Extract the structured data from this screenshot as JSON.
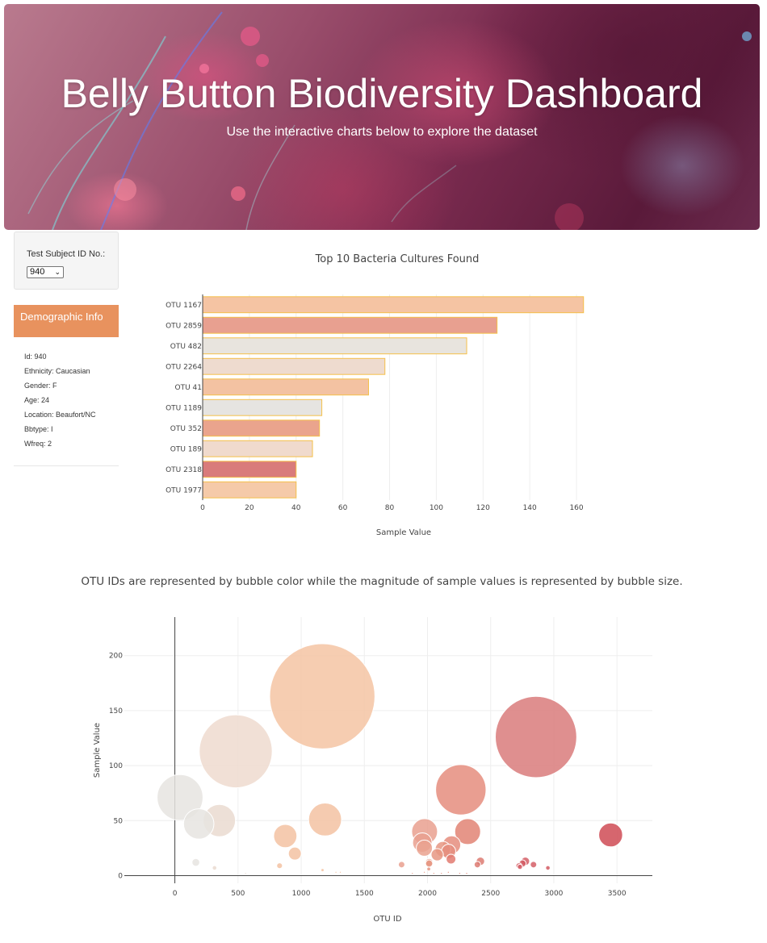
{
  "header": {
    "title": "Belly Button Biodiversity Dashboard",
    "subtitle": "Use the interactive charts below to explore the dataset"
  },
  "selector": {
    "label": "Test Subject ID No.:",
    "selected": "940"
  },
  "demographics": {
    "title": "Demographic Info",
    "rows": [
      "Id: 940",
      "Ethnicity: Caucasian",
      "Gender: F",
      "Age: 24",
      "Location: Beaufort/NC",
      "Bbtype: I",
      "Wfreq: 2"
    ]
  },
  "colors": {
    "accent": "#e8925e",
    "bar_border": "#f5c04a"
  },
  "chart_data": [
    {
      "type": "bar",
      "orientation": "horizontal",
      "title": "Top 10 Bacteria Cultures Found",
      "xlabel": "Sample Value",
      "ylabel": "",
      "xlim": [
        0,
        170
      ],
      "xticks": [
        0,
        20,
        40,
        60,
        80,
        100,
        120,
        140,
        160
      ],
      "categories": [
        "OTU 1167",
        "OTU 2859",
        "OTU 482",
        "OTU 2264",
        "OTU 41",
        "OTU 1189",
        "OTU 352",
        "OTU 189",
        "OTU 2318",
        "OTU 1977"
      ],
      "values": [
        163,
        126,
        113,
        78,
        71,
        51,
        50,
        47,
        40,
        40
      ],
      "colors": [
        "#f5c4a3",
        "#e8a090",
        "#e8e4de",
        "#eedbcf",
        "#f3c2a2",
        "#e6e4e1",
        "#eaa48d",
        "#f0dacd",
        "#d97b7b",
        "#f5caa9"
      ]
    },
    {
      "type": "scatter",
      "title": "OTU IDs are represented by bubble color while the magnitude of sample values is represented by bubble size.",
      "xlabel": "OTU ID",
      "ylabel": "Sample Value",
      "xlim": [
        -400,
        3780
      ],
      "ylim": [
        -7,
        235
      ],
      "xticks": [
        0,
        500,
        1000,
        1500,
        2000,
        2500,
        3000,
        3500
      ],
      "yticks": [
        0,
        50,
        100,
        150,
        200
      ],
      "x": [
        1167,
        2859,
        482,
        2264,
        41,
        1189,
        352,
        189,
        2318,
        1977,
        3450,
        874,
        1959,
        2191,
        2122,
        2167,
        1975,
        2077,
        2186,
        2013,
        2013,
        2419,
        2775,
        2395,
        950,
        2732,
        2839,
        2953,
        1795,
        2752,
        2010,
        1169,
        166,
        314,
        829,
        2723,
        1975,
        1880,
        2050,
        2110,
        2165,
        2255,
        1275,
        1310,
        560,
        2310
      ],
      "y": [
        163,
        126,
        113,
        78,
        71,
        51,
        50,
        47,
        40,
        40,
        37,
        36,
        30,
        28,
        24,
        22,
        25,
        19,
        15,
        12,
        11,
        13,
        13,
        10,
        20,
        8,
        10,
        7,
        10,
        11,
        6,
        5,
        12,
        7,
        9,
        9,
        3,
        2,
        2,
        2,
        3,
        2,
        3,
        3,
        2,
        2
      ],
      "colors": [
        "#f5c4a3",
        "#d97b7b",
        "#eedbcf",
        "#e58d7e",
        "#e6e4e1",
        "#f3c2a2",
        "#eadad0",
        "#e6e4e1",
        "#e28474",
        "#e9a08f",
        "#cf4b55",
        "#f3c2a2",
        "#e9a08f",
        "#e58d7e",
        "#e69783",
        "#e58d7e",
        "#eaa28f",
        "#e69783",
        "#e27a70",
        "#e69783",
        "#e69783",
        "#dd7b72",
        "#d55f67",
        "#dd7b72",
        "#f3c2a2",
        "#d55f67",
        "#d55f67",
        "#d25a63",
        "#e9a08f",
        "#d25a63",
        "#e69783",
        "#f5c4a3",
        "#e6e4e1",
        "#eadad0",
        "#f3c2a2",
        "#d55f67",
        "#eaa28f",
        "#eaa28f",
        "#e69783",
        "#e69783",
        "#e58d7e",
        "#e58d7e",
        "#f3c2a2",
        "#f3c2a2",
        "#eadad0",
        "#e28474"
      ],
      "grid": true
    }
  ]
}
